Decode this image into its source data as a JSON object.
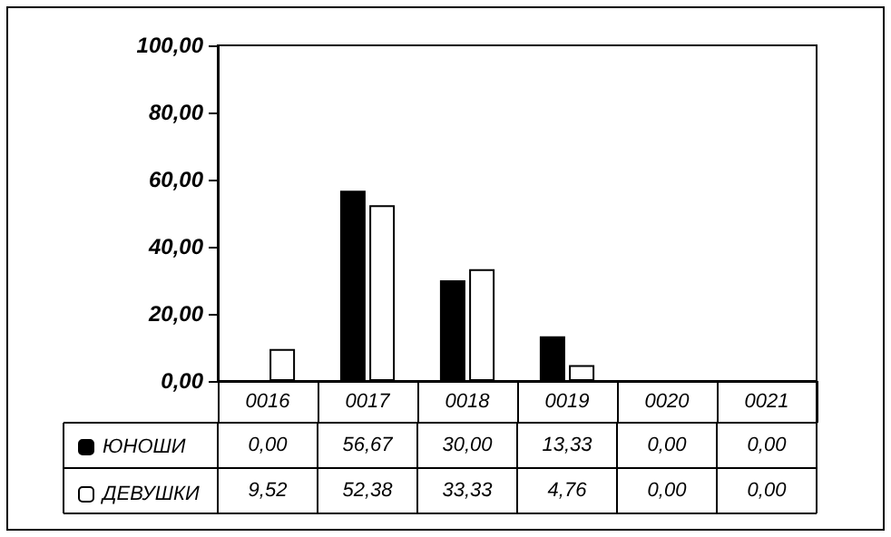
{
  "chart_data": {
    "type": "bar",
    "categories": [
      "0016",
      "0017",
      "0018",
      "0019",
      "0020",
      "0021"
    ],
    "series": [
      {
        "name": "ЮНОШИ",
        "color": "#000000",
        "values": [
          0,
          56.67,
          30,
          13.33,
          0,
          0
        ],
        "value_labels": [
          "0,00",
          "56,67",
          "30,00",
          "13,33",
          "0,00",
          "0,00"
        ]
      },
      {
        "name": "ДЕВУШКИ",
        "color": "#ffffff",
        "values": [
          9.52,
          52.38,
          33.33,
          4.76,
          0,
          0
        ],
        "value_labels": [
          "9,52",
          "52,38",
          "33,33",
          "4,76",
          "0,00",
          "0,00"
        ]
      }
    ],
    "ylim": [
      0,
      100
    ],
    "yticks": [
      {
        "value": 0,
        "label": "0,00"
      },
      {
        "value": 20,
        "label": "20,00"
      },
      {
        "value": 40,
        "label": "40,00"
      },
      {
        "value": 60,
        "label": "60,00"
      },
      {
        "value": 80,
        "label": "80,00"
      },
      {
        "value": 100,
        "label": "100,00"
      }
    ],
    "grid": false,
    "legend": "bottom left"
  }
}
